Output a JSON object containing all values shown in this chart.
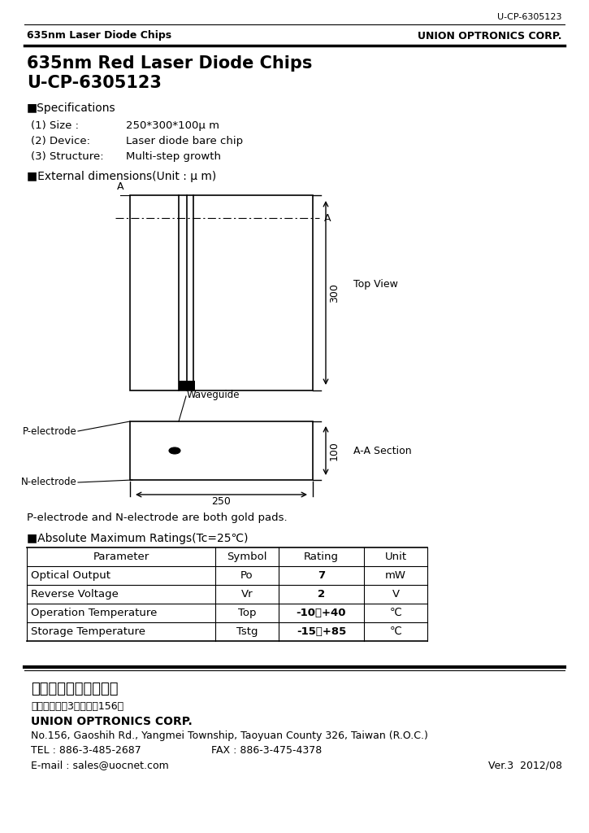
{
  "doc_number": "U-CP-6305123",
  "header_left": "635nm Laser Diode Chips",
  "header_right": "UNION OPTRONICS CORP.",
  "title_line1": "635nm Red Laser Diode Chips",
  "title_line2": "U-CP-6305123",
  "spec_header": "■Specifications",
  "spec_items": [
    [
      "(1) Size :",
      "250*300*100μ m"
    ],
    [
      "(2) Device:",
      "Laser diode bare chip"
    ],
    [
      "(3) Structure:",
      "Multi-step growth"
    ]
  ],
  "ext_dim_header": "■External dimensions(Unit : μ m)",
  "top_view_label": "Top View",
  "aa_section_label": "A-A Section",
  "dim_300": "300",
  "dim_100": "100",
  "dim_250": "250",
  "label_A_top": "A",
  "label_A_right": "A",
  "label_waveguide": "Waveguide",
  "label_p_electrode": "P-electrode",
  "label_n_electrode": "N-electrode",
  "gold_pads_note": "P-electrode and N-electrode are both gold pads.",
  "abs_max_header": "■Absolute Maximum Ratings(Tc=25℃)",
  "table_headers": [
    "Parameter",
    "Symbol",
    "Rating",
    "Unit"
  ],
  "table_rows": [
    [
      "Optical Output",
      "Po",
      "7",
      "mW"
    ],
    [
      "Reverse Voltage",
      "Vr",
      "2",
      "V"
    ],
    [
      "Operation Temperature",
      "Top",
      "-10～+40",
      "℃"
    ],
    [
      "Storage Temperature",
      "Tstg",
      "-15～+85",
      "℃"
    ]
  ],
  "footer_chinese1": "友嘉科技股份有限公司",
  "footer_chinese2": "桃園縣楊梅鎮3郳高醐路156號",
  "footer_company": "UNION OPTRONICS CORP.",
  "footer_address": "No.156, Gaoshih Rd., Yangmei Township, Taoyuan County 326, Taiwan (R.O.C.)",
  "footer_tel": "TEL : 886-3-485-2687",
  "footer_fax": "FAX : 886-3-475-4378",
  "footer_email": "E-mail : sales@uocnet.com",
  "footer_ver": "Ver.3  2012/08",
  "bg_color": "#ffffff",
  "text_color": "#000000",
  "line_color": "#000000"
}
